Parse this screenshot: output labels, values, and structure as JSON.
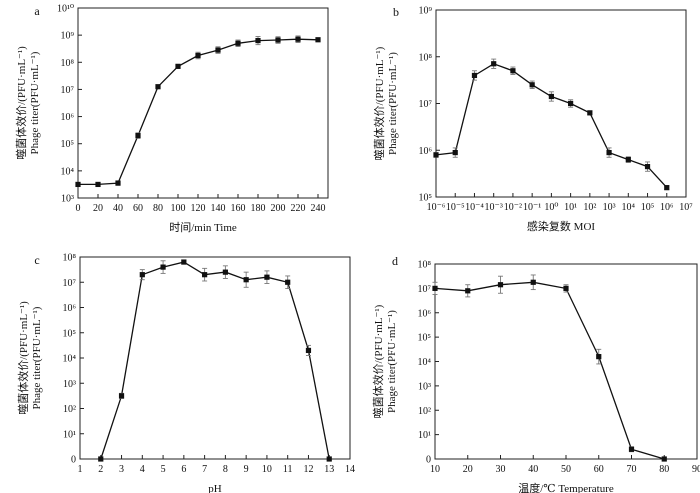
{
  "chart_data": [
    {
      "panel": "a",
      "type": "line",
      "title": "",
      "xlabel": "时间/min Time",
      "ylabel_cn": "噬菌体效价/(PFU·mL⁻¹)",
      "ylabel_en": "Phage titer(PFU·mL⁻¹)",
      "xscale": "linear",
      "xlim": [
        0,
        250
      ],
      "xticks": [
        0,
        20,
        40,
        60,
        80,
        100,
        120,
        140,
        160,
        180,
        200,
        220,
        240
      ],
      "ylim_exp": [
        3,
        10
      ],
      "ytick_exps": [
        3,
        4,
        5,
        6,
        7,
        8,
        9,
        10
      ],
      "y_unit": "log10",
      "x": [
        0,
        20,
        40,
        60,
        80,
        100,
        120,
        140,
        160,
        180,
        200,
        220,
        240
      ],
      "y_log10": [
        3.5,
        3.5,
        3.55,
        5.3,
        7.1,
        7.85,
        8.25,
        8.45,
        8.7,
        8.8,
        8.82,
        8.85,
        8.83
      ],
      "err_log10": [
        0.05,
        0.05,
        0.08,
        0.1,
        0.06,
        0.06,
        0.12,
        0.12,
        0.12,
        0.15,
        0.12,
        0.12,
        0.06
      ]
    },
    {
      "panel": "b",
      "type": "line",
      "title": "",
      "xlabel": "感染复数 MOI",
      "ylabel_cn": "噬菌体效价/(PFU·mL⁻¹)",
      "ylabel_en": "Phage titer(PFU·mL⁻¹)",
      "xscale": "log",
      "xlim_exp": [
        -6,
        7
      ],
      "xtick_exps": [
        -6,
        -5,
        -4,
        -3,
        -2,
        -1,
        0,
        1,
        2,
        3,
        4,
        5,
        6,
        7
      ],
      "ylim_exp": [
        5,
        9
      ],
      "ytick_exps": [
        5,
        6,
        7,
        8,
        9
      ],
      "y_unit": "log10",
      "x_log10": [
        -6,
        -5,
        -4,
        -3,
        -2,
        -1,
        0,
        1,
        2,
        3,
        4,
        5,
        6
      ],
      "y_log10": [
        5.9,
        5.95,
        7.6,
        7.85,
        7.7,
        7.4,
        7.15,
        7.0,
        6.8,
        5.95,
        5.8,
        5.65,
        5.2
      ],
      "err_log10": [
        0.05,
        0.1,
        0.1,
        0.1,
        0.08,
        0.08,
        0.1,
        0.08,
        0.04,
        0.1,
        0.06,
        0.1,
        0.04
      ]
    },
    {
      "panel": "c",
      "type": "line",
      "title": "",
      "xlabel": "pH",
      "ylabel_cn": "噬菌体效价/(PFU·mL⁻¹)",
      "ylabel_en": "Phage titer(PFU·mL⁻¹)",
      "xscale": "linear",
      "xlim": [
        1,
        14
      ],
      "xticks": [
        1,
        2,
        3,
        4,
        5,
        6,
        7,
        8,
        9,
        10,
        11,
        12,
        13,
        14
      ],
      "ylim_exp": [
        0,
        8
      ],
      "ytick_exps": [
        0,
        1,
        2,
        3,
        4,
        5,
        6,
        7,
        8
      ],
      "y_unit": "log10",
      "x": [
        2,
        3,
        4,
        5,
        6,
        7,
        8,
        9,
        10,
        11,
        12,
        13
      ],
      "y_log10": [
        0,
        2.5,
        7.3,
        7.6,
        7.8,
        7.3,
        7.4,
        7.1,
        7.2,
        7.0,
        4.3,
        0
      ],
      "err_log10": [
        0,
        0.1,
        0.2,
        0.25,
        0.08,
        0.25,
        0.25,
        0.3,
        0.25,
        0.25,
        0.2,
        0
      ]
    },
    {
      "panel": "d",
      "type": "line",
      "title": "",
      "xlabel": "温度/℃ Temperature",
      "ylabel_cn": "噬菌体效价/(PFU·mL⁻¹)",
      "ylabel_en": "Phage titer(PFU·mL⁻¹)",
      "xscale": "linear",
      "xlim": [
        10,
        90
      ],
      "xticks": [
        10,
        20,
        30,
        40,
        50,
        60,
        70,
        80,
        90
      ],
      "ylim_exp": [
        0,
        8
      ],
      "ytick_exps": [
        0,
        1,
        2,
        3,
        4,
        5,
        6,
        7,
        8
      ],
      "y_unit": "log10",
      "x": [
        10,
        20,
        30,
        40,
        50,
        60,
        70,
        80
      ],
      "y_log10": [
        7.0,
        6.9,
        7.15,
        7.25,
        7.0,
        4.2,
        0.4,
        0
      ],
      "err_log10": [
        0.25,
        0.25,
        0.35,
        0.3,
        0.15,
        0.3,
        0.1,
        0
      ]
    }
  ]
}
